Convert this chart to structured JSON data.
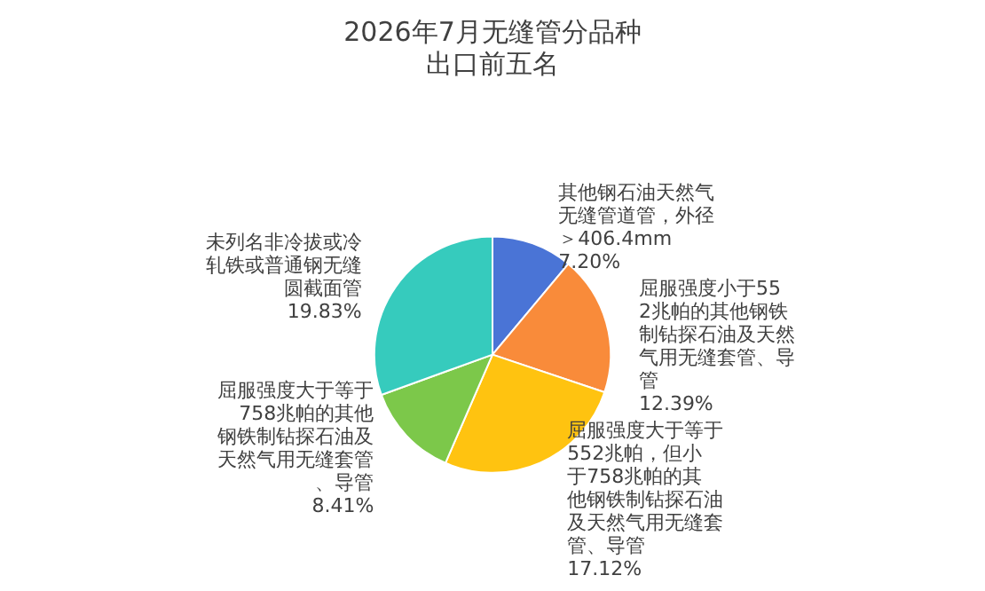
{
  "chart_data": {
    "type": "pie",
    "title": "2026年7月无缝管分品种出口前五名",
    "categories": [
      "其他钢石油天然气无缝管道管，外径＞406.4mm",
      "屈服强度小于552兆帕的其他钢铁制钻探石油及天然气用无缝套管、导管",
      "屈服强度大于等于552兆帕，但小于758兆帕的其他钢铁制钻探石油及天然气用无缝套管、导管",
      "屈服强度大于等于758兆帕的其他钢铁制钻探石油及天然气用无缝套管、导管",
      "未列名非冷拔或冷轧铁或普通钢无缝圆截面管"
    ],
    "values": [
      7.2,
      12.39,
      17.12,
      8.41,
      19.83
    ],
    "value_labels": [
      "7.20%",
      "12.39%",
      "17.12%",
      "8.41%",
      "19.83%"
    ],
    "colors": [
      "#4a74d6",
      "#f98b3a",
      "#ffc310",
      "#7cc84a",
      "#36cbbd"
    ],
    "legend": false
  }
}
